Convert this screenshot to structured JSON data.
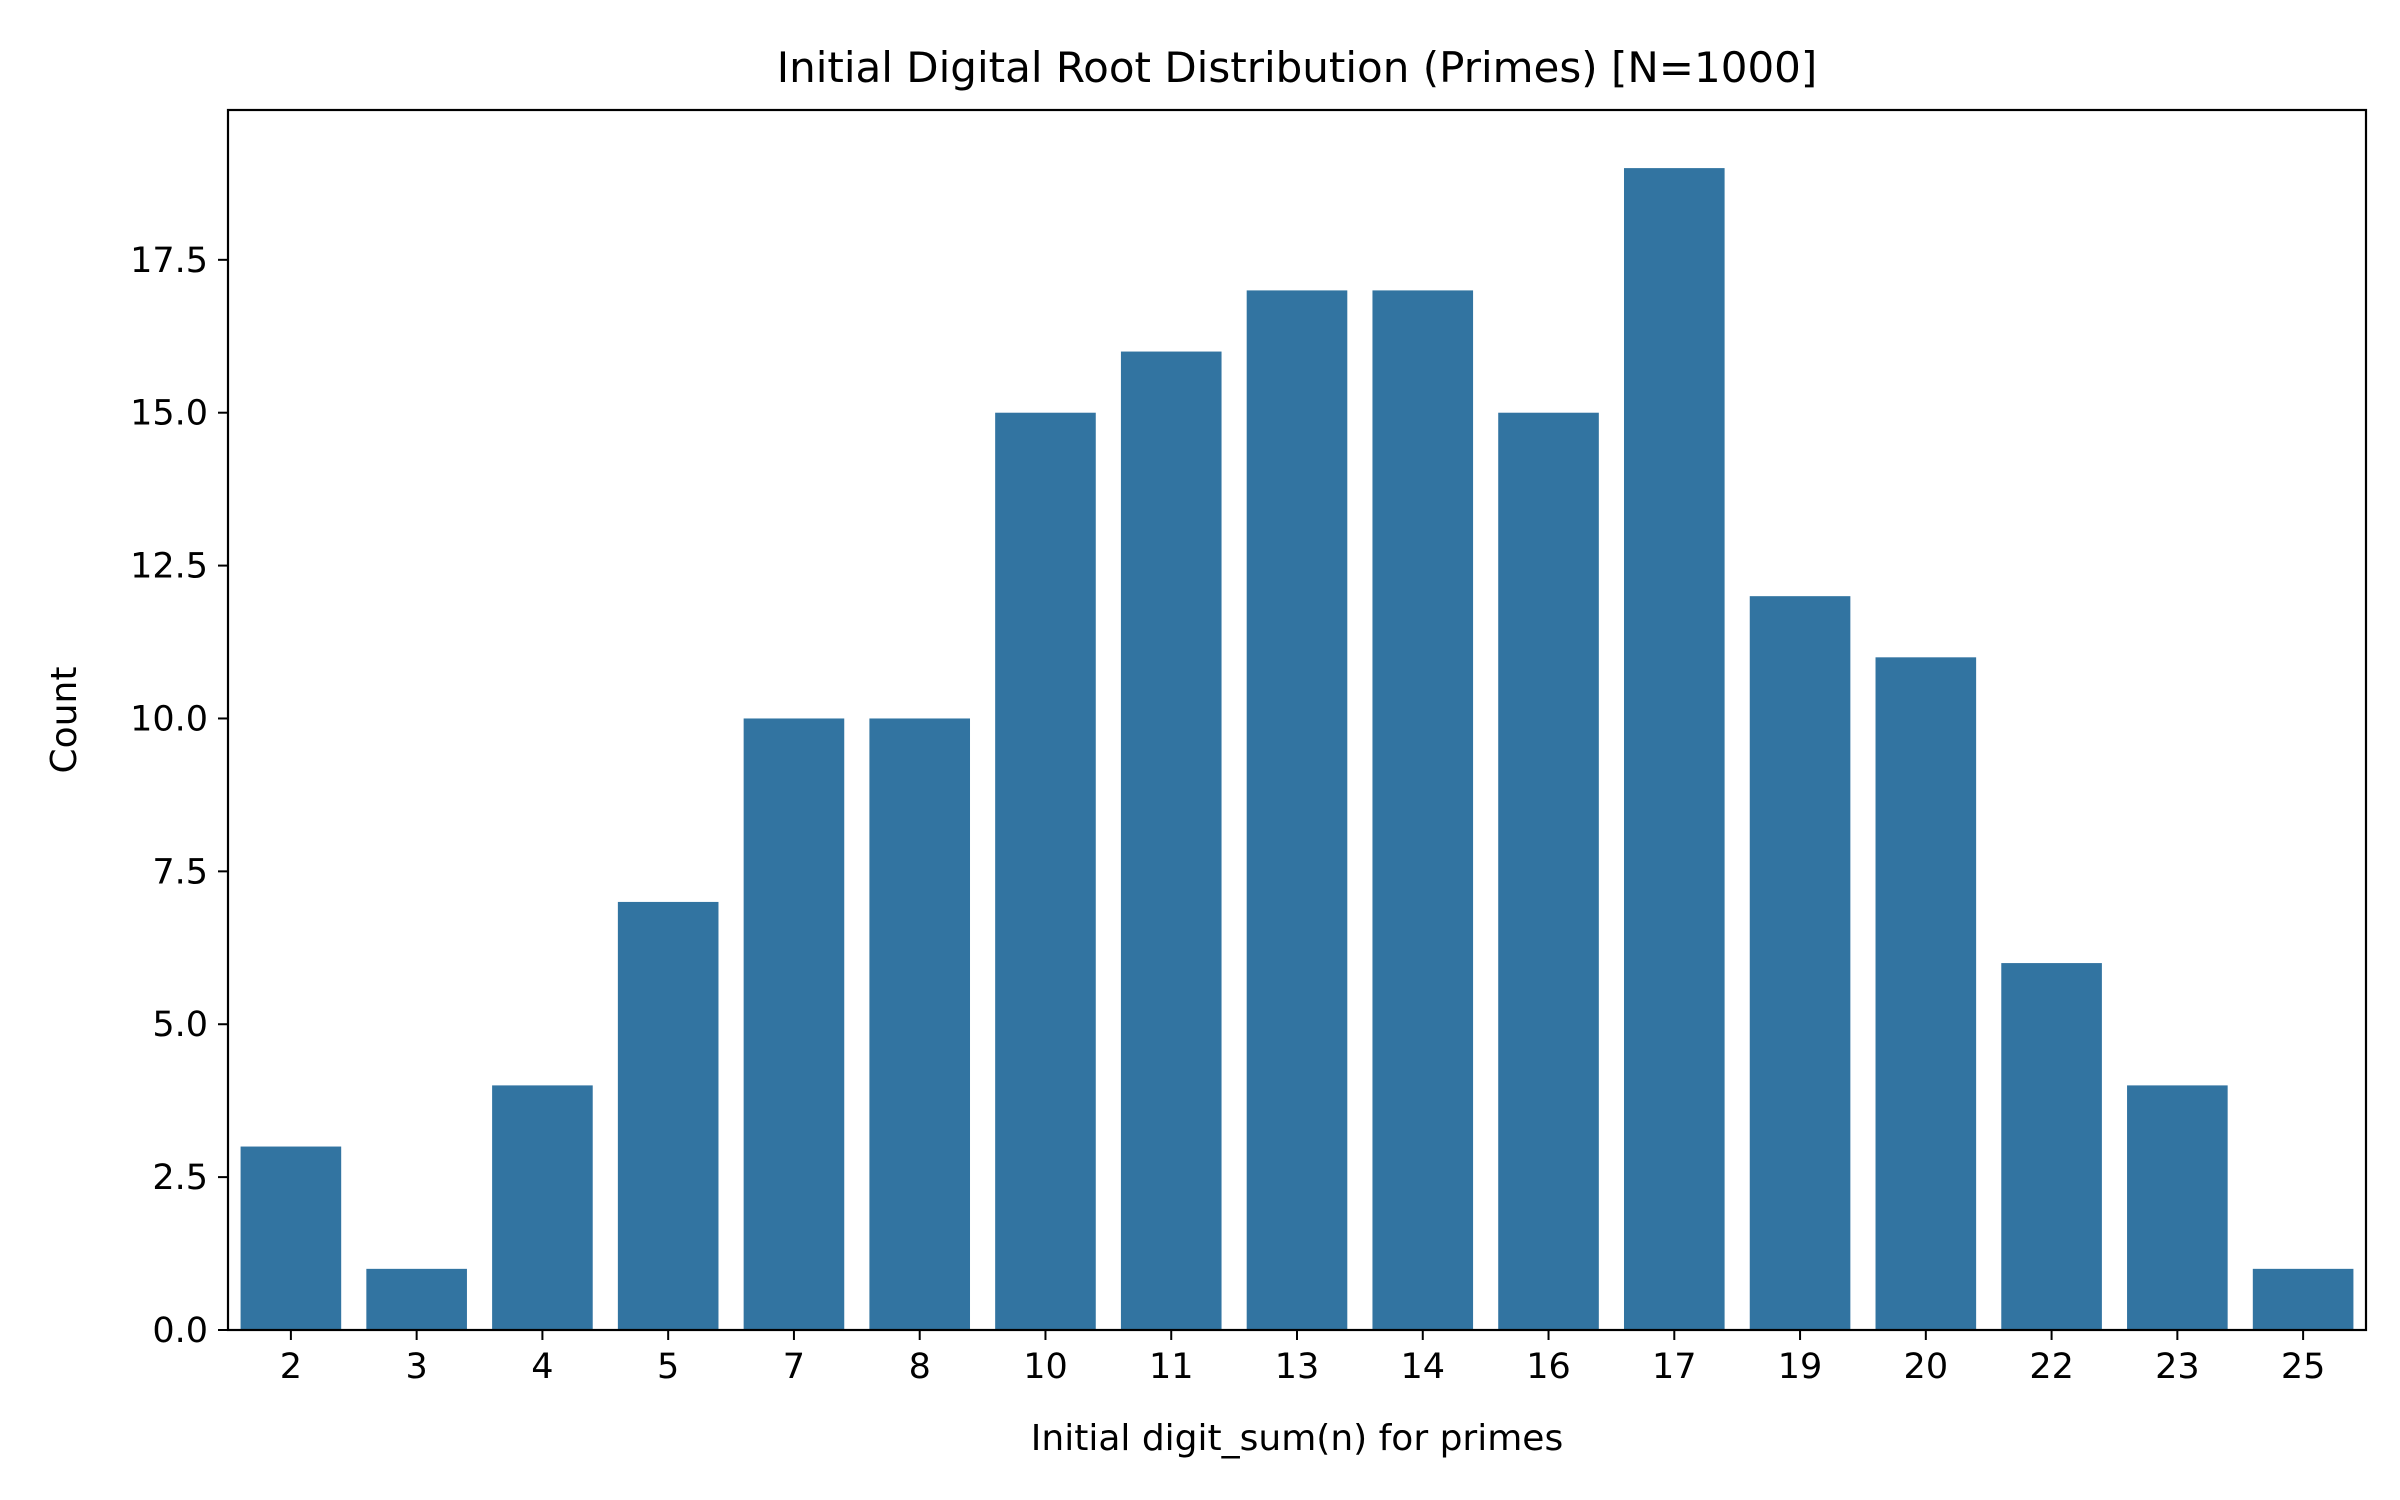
{
  "chart_data": {
    "type": "bar",
    "title": "Initial Digital Root Distribution (Primes) [N=1000]",
    "xlabel": "Initial digit_sum(n) for primes",
    "ylabel": "Count",
    "categories": [
      "2",
      "3",
      "4",
      "5",
      "7",
      "8",
      "10",
      "11",
      "13",
      "14",
      "16",
      "17",
      "19",
      "20",
      "22",
      "23",
      "25"
    ],
    "values": [
      3,
      1,
      4,
      7,
      10,
      10,
      15,
      16,
      17,
      17,
      15,
      19,
      12,
      11,
      6,
      4,
      1
    ],
    "ylim": [
      0,
      19.95
    ],
    "yticks": [
      0.0,
      2.5,
      5.0,
      7.5,
      10.0,
      12.5,
      15.0,
      17.5
    ],
    "ytick_labels": [
      "0.0",
      "2.5",
      "5.0",
      "7.5",
      "10.0",
      "12.5",
      "15.0",
      "17.5"
    ],
    "grid": false,
    "bar_color": "#3274a1"
  }
}
